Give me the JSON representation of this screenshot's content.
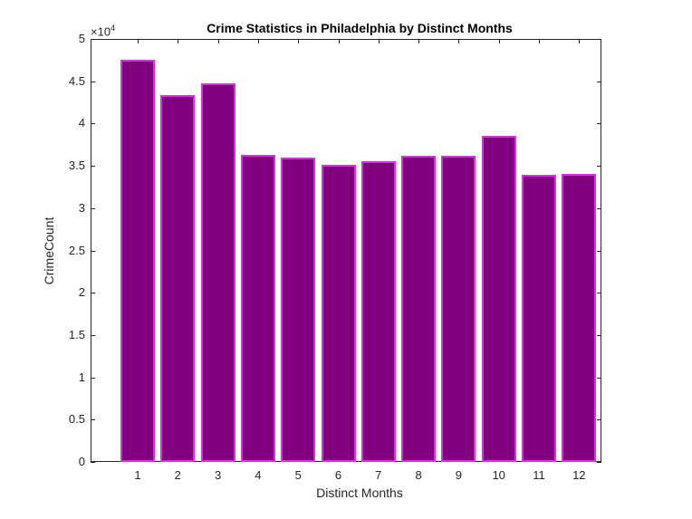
{
  "chart_data": {
    "type": "bar",
    "title": "Crime Statistics in Philadelphia by Distinct Months",
    "xlabel": "Distinct Months",
    "ylabel": "CrimeCount",
    "y_exponent_label": "×10",
    "y_exponent": "4",
    "categories": [
      "1",
      "2",
      "3",
      "4",
      "5",
      "6",
      "7",
      "8",
      "9",
      "10",
      "11",
      "12"
    ],
    "values": [
      47500,
      43400,
      44800,
      36300,
      36000,
      35100,
      35500,
      36200,
      36200,
      38500,
      33900,
      34000
    ],
    "ylim": [
      0,
      50000
    ],
    "yticks": [
      "0",
      "0.5",
      "1",
      "1.5",
      "2",
      "2.5",
      "3",
      "3.5",
      "4",
      "4.5",
      "5"
    ],
    "grid": false,
    "bar_color": "#800080",
    "bar_edge_color": "#d633e0"
  }
}
